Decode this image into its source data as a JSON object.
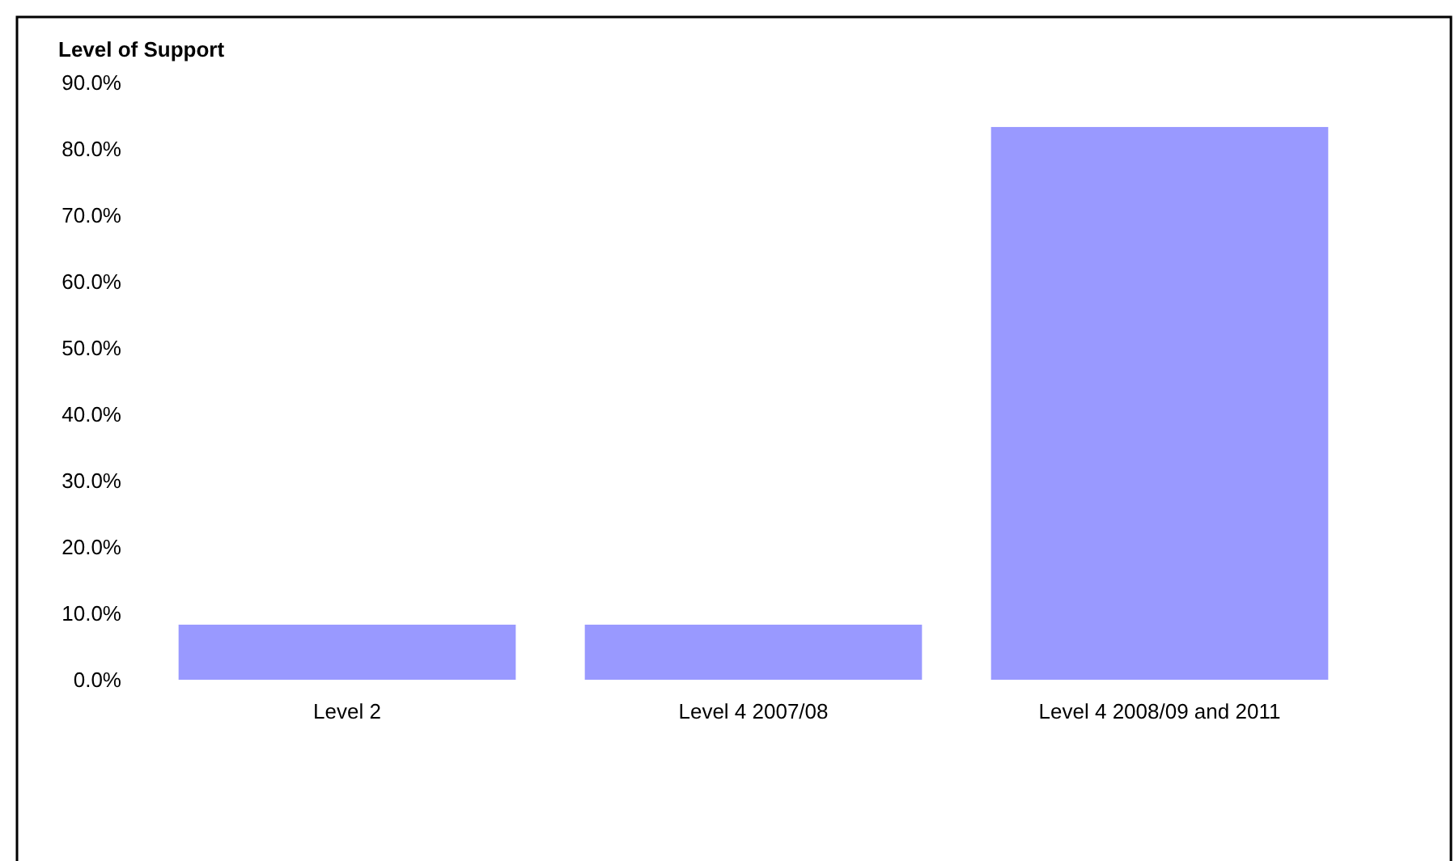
{
  "chart_data": {
    "type": "bar",
    "title": "Level of Support",
    "categories": [
      "Level 2",
      "Level 4 2007/08",
      "Level 4 2008/09 and 2011"
    ],
    "values": [
      8.3,
      8.3,
      83.3
    ],
    "color": "#9999ff",
    "ylim": [
      0,
      90
    ],
    "yticks": [
      {
        "value": 0,
        "label": "0.0%"
      },
      {
        "value": 10,
        "label": "10.0%"
      },
      {
        "value": 20,
        "label": "20.0%"
      },
      {
        "value": 30,
        "label": "30.0%"
      },
      {
        "value": 40,
        "label": "40.0%"
      },
      {
        "value": 50,
        "label": "50.0%"
      },
      {
        "value": 60,
        "label": "60.0%"
      },
      {
        "value": 70,
        "label": "70.0%"
      },
      {
        "value": 80,
        "label": "80.0%"
      },
      {
        "value": 90,
        "label": "90.0%"
      }
    ],
    "grid": false
  }
}
